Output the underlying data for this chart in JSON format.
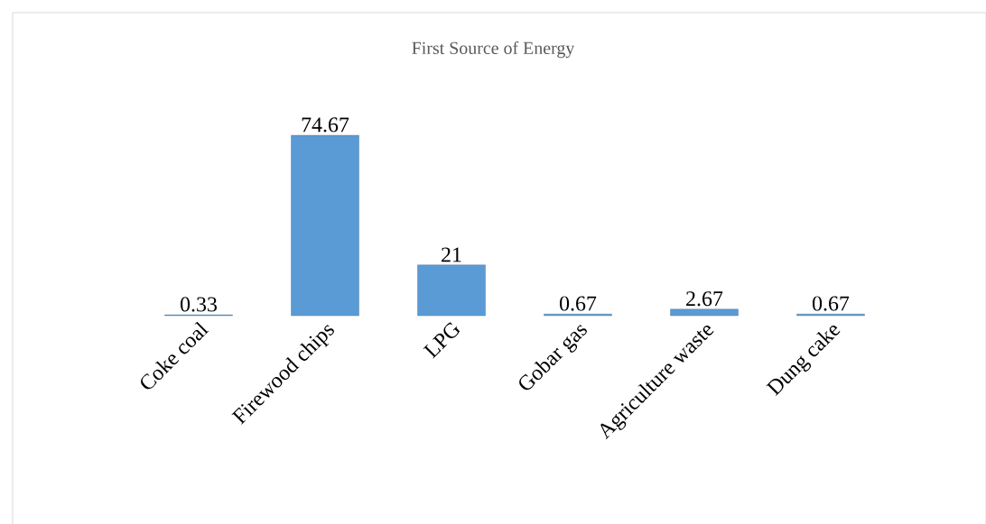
{
  "chart_data": {
    "type": "bar",
    "title": "First Source of Energy",
    "categories": [
      "Coke coal",
      "Firewood chips",
      "LPG",
      "Gobar gas",
      "Agriculture waste",
      "Dung cake"
    ],
    "values": [
      0.33,
      74.67,
      21,
      0.67,
      2.67,
      0.67
    ],
    "color": "#5b9bd5",
    "data_labels": true
  }
}
